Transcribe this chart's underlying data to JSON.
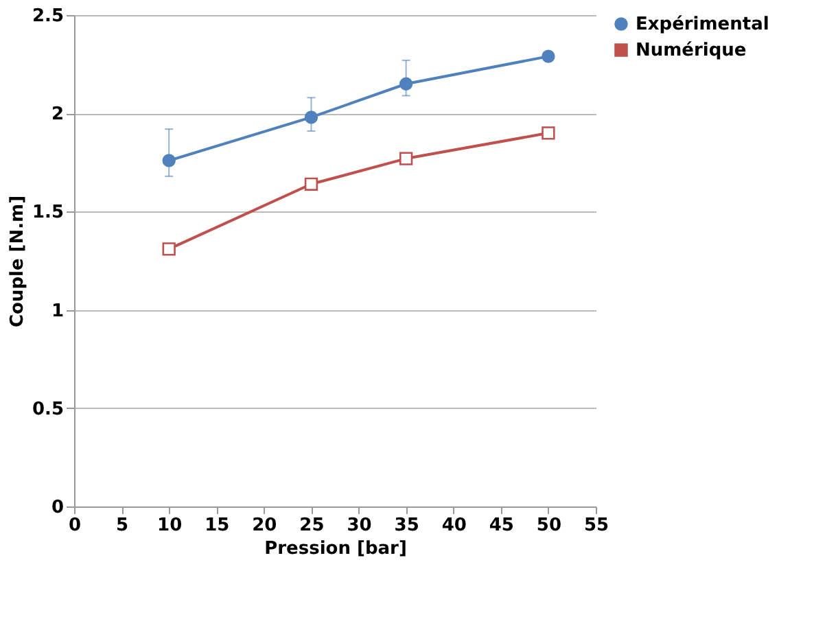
{
  "chart_data": {
    "type": "line",
    "xlabel": "Pression [bar]",
    "ylabel": "Couple [N.m]",
    "x": [
      10,
      25,
      35,
      50
    ],
    "series": [
      {
        "name": "Expérimental",
        "color": "#4f81bd",
        "marker": "circle",
        "values": [
          1.76,
          1.98,
          2.15,
          2.29
        ],
        "errors": [
          [
            1.68,
            1.92
          ],
          [
            1.91,
            2.08
          ],
          [
            2.09,
            2.27
          ],
          null
        ]
      },
      {
        "name": "Numérique",
        "color": "#c0504d",
        "marker": "square",
        "values": [
          1.31,
          1.64,
          1.77,
          1.9
        ]
      }
    ],
    "xlim": [
      0,
      55
    ],
    "xticks": [
      0,
      5,
      10,
      15,
      20,
      25,
      30,
      35,
      40,
      45,
      50,
      55
    ],
    "ylim": [
      0,
      2.5
    ],
    "yticks": [
      0,
      0.5,
      1,
      1.5,
      2,
      2.5
    ],
    "grid": "y",
    "legend": "right",
    "line_style": "solid"
  }
}
